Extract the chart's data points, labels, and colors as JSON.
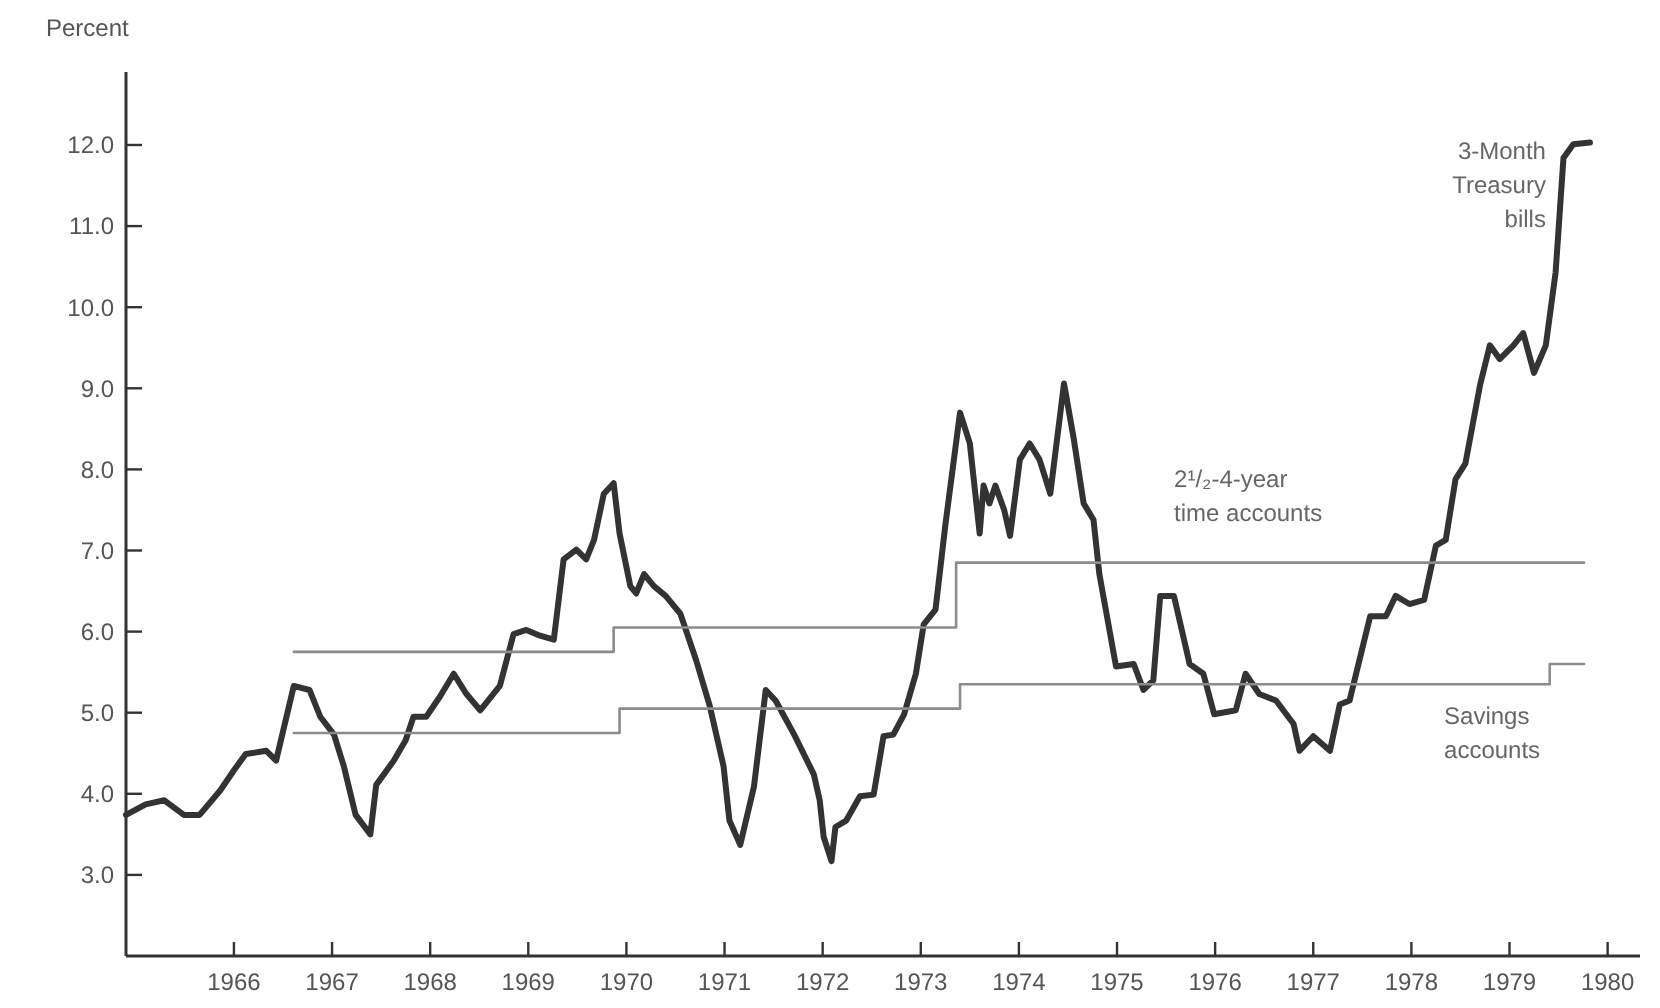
{
  "chart_data": {
    "type": "line",
    "ylabel": "Percent",
    "xlim": [
      1964.9,
      1980.33
    ],
    "ylim": [
      2,
      12.9
    ],
    "xticks": [
      1966,
      1967,
      1968,
      1969,
      1970,
      1971,
      1972,
      1973,
      1974,
      1975,
      1976,
      1977,
      1978,
      1979,
      1980
    ],
    "yticks": [
      {
        "value": 3,
        "label": "3.0"
      },
      {
        "value": 4,
        "label": "4.0"
      },
      {
        "value": 5,
        "label": "5.0"
      },
      {
        "value": 6,
        "label": "6.0"
      },
      {
        "value": 7,
        "label": "7.0"
      },
      {
        "value": 8,
        "label": "8.0"
      },
      {
        "value": 9,
        "label": "9.0"
      },
      {
        "value": 10,
        "label": "10.0"
      },
      {
        "value": 11,
        "label": "11.0"
      },
      {
        "value": 12,
        "label": "12.0"
      }
    ],
    "grid": false,
    "marker": "none",
    "series": [
      {
        "name": "3-Month Treasury bills",
        "color": "#333333",
        "x": [
          1964.9,
          1965.1,
          1965.29,
          1965.49,
          1965.65,
          1965.86,
          1966.0,
          1966.12,
          1966.33,
          1966.43,
          1966.61,
          1966.77,
          1966.88,
          1967.02,
          1967.12,
          1967.24,
          1967.39,
          1967.45,
          1967.63,
          1967.75,
          1967.83,
          1967.96,
          1968.1,
          1968.24,
          1968.37,
          1968.51,
          1968.71,
          1968.85,
          1968.98,
          1969.12,
          1969.26,
          1969.36,
          1969.49,
          1969.59,
          1969.67,
          1969.77,
          1969.87,
          1969.93,
          1970.04,
          1970.1,
          1970.18,
          1970.28,
          1970.4,
          1970.55,
          1970.71,
          1970.85,
          1970.99,
          1971.05,
          1971.16,
          1971.3,
          1971.42,
          1971.52,
          1971.71,
          1971.91,
          1971.97,
          1972.01,
          1972.09,
          1972.13,
          1972.24,
          1972.38,
          1972.52,
          1972.62,
          1972.72,
          1972.83,
          1972.95,
          1973.03,
          1973.15,
          1973.25,
          1973.4,
          1973.5,
          1973.6,
          1973.64,
          1973.7,
          1973.76,
          1973.85,
          1973.91,
          1974.01,
          1974.11,
          1974.21,
          1974.32,
          1974.46,
          1974.56,
          1974.66,
          1974.76,
          1974.82,
          1974.99,
          1975.17,
          1975.27,
          1975.37,
          1975.44,
          1975.58,
          1975.74,
          1975.88,
          1975.99,
          1976.21,
          1976.31,
          1976.45,
          1976.62,
          1976.8,
          1976.86,
          1977.0,
          1977.17,
          1977.27,
          1977.37,
          1977.58,
          1977.74,
          1977.84,
          1977.98,
          1978.13,
          1978.25,
          1978.35,
          1978.45,
          1978.55,
          1978.7,
          1978.8,
          1978.9,
          1979.04,
          1979.14,
          1979.25,
          1979.37,
          1979.47,
          1979.55,
          1979.65,
          1979.82
        ],
        "values": [
          3.74,
          3.87,
          3.92,
          3.74,
          3.74,
          4.04,
          4.29,
          4.49,
          4.53,
          4.41,
          5.33,
          5.28,
          4.95,
          4.73,
          4.34,
          3.74,
          3.5,
          4.11,
          4.41,
          4.66,
          4.95,
          4.95,
          5.2,
          5.48,
          5.23,
          5.03,
          5.33,
          5.97,
          6.02,
          5.95,
          5.9,
          6.89,
          7.01,
          6.89,
          7.13,
          7.7,
          7.83,
          7.21,
          6.56,
          6.47,
          6.71,
          6.56,
          6.44,
          6.22,
          5.65,
          5.08,
          4.34,
          3.67,
          3.37,
          4.09,
          5.28,
          5.15,
          4.73,
          4.24,
          3.92,
          3.47,
          3.17,
          3.59,
          3.67,
          3.97,
          3.99,
          4.71,
          4.73,
          4.98,
          5.48,
          6.09,
          6.27,
          7.31,
          8.7,
          8.32,
          7.21,
          7.8,
          7.58,
          7.8,
          7.5,
          7.18,
          8.12,
          8.32,
          8.12,
          7.7,
          9.06,
          8.37,
          7.58,
          7.38,
          6.71,
          5.57,
          5.6,
          5.28,
          5.4,
          6.44,
          6.44,
          5.6,
          5.48,
          4.98,
          5.03,
          5.48,
          5.23,
          5.15,
          4.86,
          4.53,
          4.71,
          4.53,
          5.1,
          5.15,
          6.19,
          6.19,
          6.44,
          6.34,
          6.39,
          7.06,
          7.13,
          7.88,
          8.07,
          9.04,
          9.53,
          9.36,
          9.53,
          9.68,
          9.19,
          9.53,
          10.43,
          11.84,
          12.01,
          12.03
        ]
      },
      {
        "name": "2¹/₂-4-year time accounts",
        "type": "step",
        "color": "#8c8c8c",
        "x": [
          1966.61,
          1969.87,
          1973.36,
          1979.76
        ],
        "values": [
          5.75,
          6.05,
          6.85,
          6.85
        ]
      },
      {
        "name": "Savings accounts",
        "type": "step",
        "color": "#8c8c8c",
        "x": [
          1966.61,
          1969.93,
          1973.4,
          1979.41,
          1979.76
        ],
        "values": [
          4.75,
          5.05,
          5.35,
          5.6,
          5.6
        ]
      }
    ]
  }
}
